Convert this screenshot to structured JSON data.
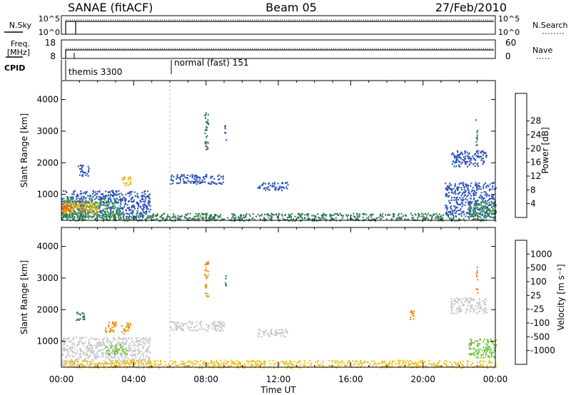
{
  "header": {
    "station": "SANAE (fitACF)",
    "beam": "Beam 05",
    "date": "27/Feb/2010"
  },
  "nsky_panel": {
    "left_label": "N.Sky",
    "right_label": "N.Search",
    "left_ticks": [
      "10^5",
      "10^0"
    ],
    "right_ticks": [
      "10^5",
      "10^0"
    ]
  },
  "freq_panel": {
    "left_label_line1": "Freq.",
    "left_label_line2": "[MHz]",
    "right_label": "Nave",
    "left_ticks": [
      "18",
      "8"
    ],
    "right_ticks": [
      "60",
      "0"
    ]
  },
  "cpid_panel": {
    "label": "CPID",
    "modes": [
      "themis 3300",
      "normal (fast) 151"
    ]
  },
  "colors": {
    "power_scale": [
      "#1f2bd8",
      "#2a52b8",
      "#2e7a52",
      "#3f9a4a",
      "#7cc13e",
      "#e6b400",
      "#f08a10",
      "#ea5a10",
      "#dd1e1e"
    ],
    "velocity_scale": [
      "#1f2bd8",
      "#2a52b8",
      "#2e7a52",
      "#6cc13a",
      "#c8c8c8",
      "#f2c020",
      "#f08a10",
      "#ea5a10",
      "#dd1e1e"
    ]
  },
  "chart_data": [
    {
      "type": "heatmap",
      "title": "",
      "xlabel": "Time UT",
      "ylabel": "Slant Range [km]",
      "x_ticks": [
        "00:00",
        "04:00",
        "08:00",
        "12:00",
        "16:00",
        "20:00",
        "00:00"
      ],
      "y_ticks": [
        1000,
        2000,
        3000,
        4000
      ],
      "xlim_hours": [
        0,
        24
      ],
      "ylim_km": [
        180,
        4600
      ],
      "colorbar": {
        "label": "Power [dB]",
        "ticks": [
          4,
          8,
          12,
          16,
          20,
          24,
          28
        ],
        "range": [
          0,
          32
        ]
      },
      "regions": [
        {
          "t": [
            0.0,
            4.9
          ],
          "r": [
            280,
            1150
          ],
          "value": 6
        },
        {
          "t": [
            0.0,
            3.2
          ],
          "r": [
            280,
            900
          ],
          "value": 12
        },
        {
          "t": [
            0.0,
            2.0
          ],
          "r": [
            380,
            760
          ],
          "value": 18
        },
        {
          "t": [
            0.0,
            1.2
          ],
          "r": [
            480,
            720
          ],
          "value": 24
        },
        {
          "t": [
            0.0,
            0.6
          ],
          "r": [
            520,
            680
          ],
          "value": 28
        },
        {
          "t": [
            0.9,
            1.5
          ],
          "r": [
            1600,
            1950
          ],
          "value": 5
        },
        {
          "t": [
            3.3,
            3.8
          ],
          "r": [
            1300,
            1600
          ],
          "value": 20
        },
        {
          "t": [
            6.0,
            9.0
          ],
          "r": [
            1350,
            1650
          ],
          "value": 5
        },
        {
          "t": [
            10.8,
            12.5
          ],
          "r": [
            1150,
            1400
          ],
          "value": 5
        },
        {
          "t": [
            21.2,
            24.0
          ],
          "r": [
            300,
            1400
          ],
          "value": 6
        },
        {
          "t": [
            22.5,
            24.0
          ],
          "r": [
            400,
            800
          ],
          "value": 12
        },
        {
          "t": [
            21.5,
            23.5
          ],
          "r": [
            1900,
            2400
          ],
          "value": 5
        },
        {
          "t": [
            7.9,
            8.1
          ],
          "r": [
            2400,
            3600
          ],
          "value": 10
        },
        {
          "t": [
            9.0,
            9.1
          ],
          "r": [
            2700,
            3200
          ],
          "value": 6
        },
        {
          "t": [
            22.9,
            23.0
          ],
          "r": [
            2500,
            3400
          ],
          "value": 8
        },
        {
          "t": [
            0.0,
            24.0
          ],
          "r": [
            180,
            420
          ],
          "value": 8
        }
      ]
    },
    {
      "type": "heatmap",
      "title": "",
      "xlabel": "Time UT",
      "ylabel": "Slant Range [km]",
      "x_ticks": [
        "00:00",
        "04:00",
        "08:00",
        "12:00",
        "16:00",
        "20:00",
        "00:00"
      ],
      "y_ticks": [
        1000,
        2000,
        3000,
        4000
      ],
      "xlim_hours": [
        0,
        24
      ],
      "ylim_km": [
        180,
        4600
      ],
      "colorbar": {
        "label": "Velocity [m s⁻¹]",
        "ticks": [
          "1000",
          "500",
          "100",
          "25",
          "-25",
          "-100",
          "-500",
          "-1000"
        ],
        "range": [
          -1200,
          1200
        ]
      },
      "regions": [
        {
          "t": [
            0.0,
            4.9
          ],
          "r": [
            280,
            1150
          ],
          "value": 0
        },
        {
          "t": [
            2.4,
            3.6
          ],
          "r": [
            600,
            900
          ],
          "value": 60
        },
        {
          "t": [
            0.8,
            1.3
          ],
          "r": [
            1650,
            1950
          ],
          "value": 300
        },
        {
          "t": [
            2.4,
            3.0
          ],
          "r": [
            1300,
            1650
          ],
          "value": -150
        },
        {
          "t": [
            3.3,
            3.8
          ],
          "r": [
            1250,
            1600
          ],
          "value": -200
        },
        {
          "t": [
            6.0,
            9.0
          ],
          "r": [
            1350,
            1650
          ],
          "value": 0
        },
        {
          "t": [
            10.8,
            12.5
          ],
          "r": [
            1150,
            1400
          ],
          "value": 0
        },
        {
          "t": [
            22.5,
            24.0
          ],
          "r": [
            500,
            1100
          ],
          "value": 60
        },
        {
          "t": [
            21.5,
            23.5
          ],
          "r": [
            1900,
            2400
          ],
          "value": 0
        },
        {
          "t": [
            7.9,
            8.1
          ],
          "r": [
            2400,
            3600
          ],
          "value": -400
        },
        {
          "t": [
            9.0,
            9.1
          ],
          "r": [
            2700,
            3200
          ],
          "value": 300
        },
        {
          "t": [
            22.9,
            23.0
          ],
          "r": [
            2500,
            3400
          ],
          "value": -200
        },
        {
          "t": [
            19.2,
            19.5
          ],
          "r": [
            1700,
            2000
          ],
          "value": -300
        },
        {
          "t": [
            0.0,
            24.0
          ],
          "r": [
            180,
            420
          ],
          "value": -60
        }
      ]
    }
  ]
}
